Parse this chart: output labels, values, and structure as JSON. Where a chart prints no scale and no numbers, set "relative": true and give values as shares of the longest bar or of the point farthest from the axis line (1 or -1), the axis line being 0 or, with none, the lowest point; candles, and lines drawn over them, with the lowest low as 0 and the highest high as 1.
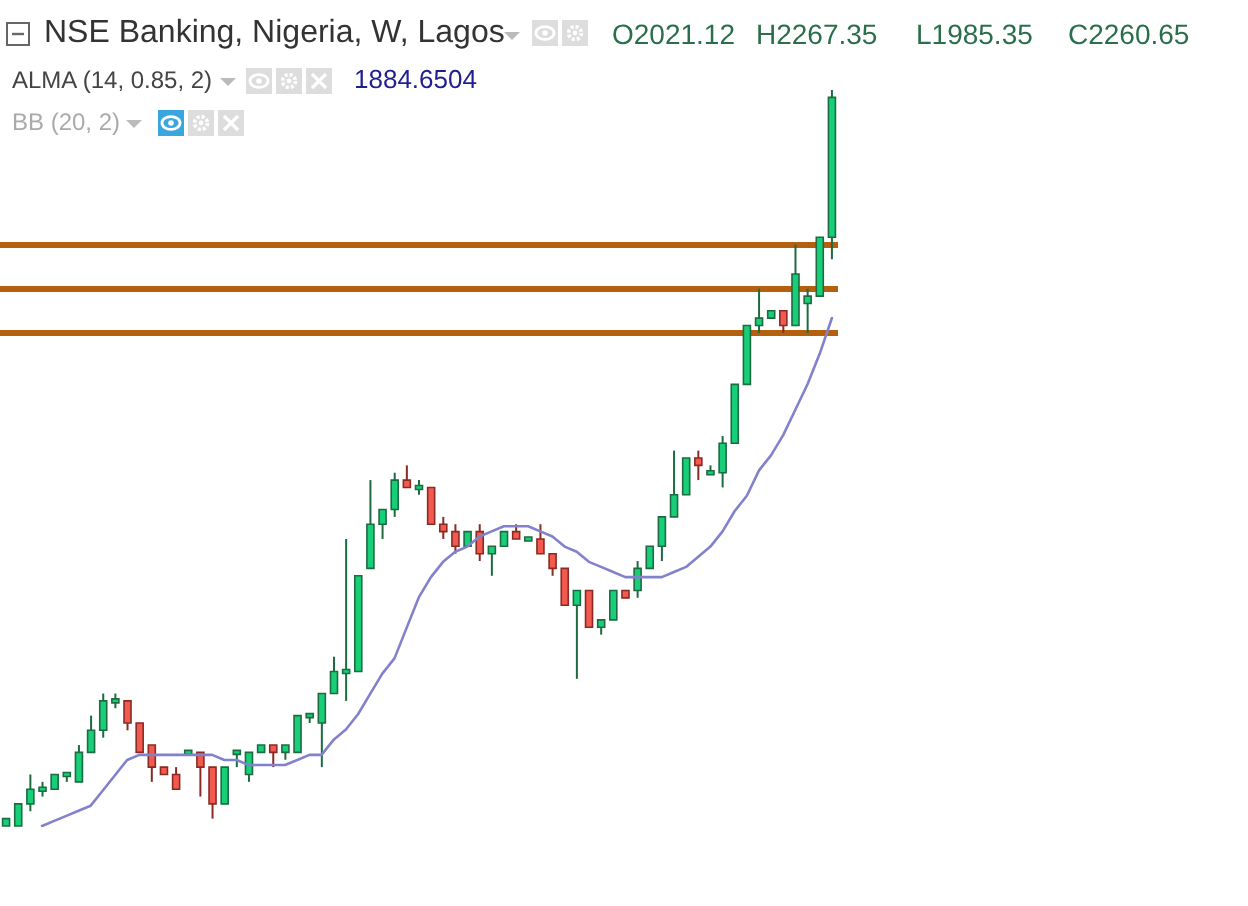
{
  "chart_data": [
    {
      "type": "candlestick",
      "relative": true,
      "annotations": [
        "NSE Banking, Nigeria, W, Lagos",
        "O2021.12",
        "H2267.35",
        "L1985.35",
        "C2260.65",
        "ALMA (14, 0.85, 2)",
        "1884.6504",
        "BB (20, 2)"
      ],
      "categories": [
        null,
        null,
        null,
        null,
        null,
        null,
        null,
        null,
        null,
        null,
        null,
        null,
        null,
        null,
        null,
        null,
        null,
        null,
        null,
        null,
        null,
        null,
        null,
        null,
        null,
        null,
        null,
        null,
        null,
        null,
        null,
        null,
        null,
        null,
        null,
        null,
        null,
        null,
        null,
        null,
        null,
        null,
        null,
        null,
        null,
        null,
        null,
        null,
        null,
        null,
        null,
        null,
        null,
        null,
        null,
        null,
        null,
        null,
        null,
        null,
        null,
        null,
        null,
        null,
        null,
        null,
        null,
        null,
        null
      ],
      "ohlc": [
        [
          0.0,
          0.01,
          0.0,
          0.01
        ],
        [
          0.0,
          0.03,
          0.0,
          0.03
        ],
        [
          0.03,
          0.07,
          0.02,
          0.05
        ],
        [
          0.05,
          0.06,
          0.04,
          0.05
        ],
        [
          0.05,
          0.07,
          0.05,
          0.07
        ],
        [
          0.07,
          0.07,
          0.06,
          0.07
        ],
        [
          0.06,
          0.11,
          0.06,
          0.1
        ],
        [
          0.1,
          0.15,
          0.1,
          0.13
        ],
        [
          0.13,
          0.18,
          0.12,
          0.17
        ],
        [
          0.17,
          0.18,
          0.16,
          0.17
        ],
        [
          0.17,
          0.17,
          0.13,
          0.14
        ],
        [
          0.14,
          0.14,
          0.1,
          0.1
        ],
        [
          0.11,
          0.11,
          0.06,
          0.08
        ],
        [
          0.08,
          0.08,
          0.07,
          0.07
        ],
        [
          0.07,
          0.08,
          0.05,
          0.05
        ],
        [
          0.1,
          0.1,
          0.1,
          0.1
        ],
        [
          0.1,
          0.1,
          0.04,
          0.08
        ],
        [
          0.08,
          0.08,
          0.01,
          0.03
        ],
        [
          0.03,
          0.08,
          0.03,
          0.08
        ],
        [
          0.1,
          0.1,
          0.08,
          0.1
        ],
        [
          0.07,
          0.1,
          0.06,
          0.1
        ],
        [
          0.1,
          0.11,
          0.1,
          0.11
        ],
        [
          0.11,
          0.11,
          0.08,
          0.1
        ],
        [
          0.1,
          0.11,
          0.09,
          0.11
        ],
        [
          0.1,
          0.15,
          0.1,
          0.15
        ],
        [
          0.15,
          0.15,
          0.14,
          0.15
        ],
        [
          0.14,
          0.18,
          0.08,
          0.18
        ],
        [
          0.18,
          0.23,
          0.18,
          0.21
        ],
        [
          0.21,
          0.39,
          0.17,
          0.21
        ],
        [
          0.21,
          0.34,
          0.21,
          0.34
        ],
        [
          0.35,
          0.47,
          0.35,
          0.41
        ],
        [
          0.41,
          0.43,
          0.39,
          0.43
        ],
        [
          0.43,
          0.48,
          0.42,
          0.47
        ],
        [
          0.47,
          0.49,
          0.46,
          0.46
        ],
        [
          0.46,
          0.47,
          0.45,
          0.46
        ],
        [
          0.46,
          0.46,
          0.41,
          0.41
        ],
        [
          0.41,
          0.42,
          0.39,
          0.4
        ],
        [
          0.4,
          0.41,
          0.37,
          0.38
        ],
        [
          0.38,
          0.4,
          0.38,
          0.4
        ],
        [
          0.4,
          0.41,
          0.36,
          0.37
        ],
        [
          0.37,
          0.38,
          0.34,
          0.38
        ],
        [
          0.38,
          0.4,
          0.38,
          0.4
        ],
        [
          0.4,
          0.41,
          0.39,
          0.39
        ],
        [
          0.39,
          0.39,
          0.39,
          0.39
        ],
        [
          0.39,
          0.41,
          0.37,
          0.37
        ],
        [
          0.37,
          0.37,
          0.34,
          0.35
        ],
        [
          0.35,
          0.35,
          0.3,
          0.3
        ],
        [
          0.3,
          0.32,
          0.2,
          0.32
        ],
        [
          0.32,
          0.32,
          0.27,
          0.27
        ],
        [
          0.27,
          0.28,
          0.26,
          0.28
        ],
        [
          0.28,
          0.32,
          0.28,
          0.32
        ],
        [
          0.32,
          0.32,
          0.31,
          0.31
        ],
        [
          0.32,
          0.36,
          0.31,
          0.35
        ],
        [
          0.35,
          0.38,
          0.35,
          0.38
        ],
        [
          0.38,
          0.42,
          0.36,
          0.42
        ],
        [
          0.42,
          0.51,
          0.42,
          0.45
        ],
        [
          0.45,
          0.5,
          0.45,
          0.5
        ],
        [
          0.5,
          0.51,
          0.47,
          0.49
        ],
        [
          0.48,
          0.49,
          0.48,
          0.48
        ],
        [
          0.48,
          0.53,
          0.46,
          0.52
        ],
        [
          0.52,
          0.6,
          0.52,
          0.6
        ],
        [
          0.6,
          0.68,
          0.6,
          0.68
        ],
        [
          0.68,
          0.73,
          0.67,
          0.69
        ],
        [
          0.69,
          0.7,
          0.69,
          0.7
        ],
        [
          0.7,
          0.7,
          0.67,
          0.68
        ],
        [
          0.68,
          0.79,
          0.68,
          0.75
        ],
        [
          0.71,
          0.73,
          0.67,
          0.72
        ],
        [
          0.72,
          0.8,
          0.72,
          0.8
        ],
        [
          0.8,
          1.0,
          0.77,
          0.99
        ]
      ],
      "ref_lines": [
        {
          "axis": "y",
          "value": 0.79,
          "color": "#b5600f"
        },
        {
          "axis": "y",
          "value": 0.73,
          "color": "#b5600f"
        },
        {
          "axis": "y",
          "value": 0.67,
          "color": "#b5600f"
        }
      ]
    },
    {
      "type": "line",
      "relative": true,
      "marker": "none",
      "line_style": "solid",
      "categories": [
        null,
        null,
        null,
        null,
        null,
        null,
        null,
        null,
        null,
        null,
        null,
        null,
        null,
        null,
        null,
        null,
        null,
        null,
        null,
        null,
        null,
        null,
        null,
        null,
        null,
        null,
        null,
        null,
        null,
        null,
        null,
        null,
        null,
        null,
        null,
        null,
        null,
        null,
        null,
        null,
        null,
        null,
        null,
        null,
        null,
        null,
        null,
        null,
        null,
        null,
        null,
        null,
        null,
        null,
        null,
        null,
        null,
        null,
        null,
        null,
        null,
        null,
        null,
        null,
        null,
        null
      ],
      "series": [
        {
          "color": "#8282cc",
          "values": [
            0.0,
            0.01,
            0.02,
            0.03,
            0.04,
            0.07,
            0.1,
            0.13,
            0.14,
            0.14,
            0.14,
            0.14,
            0.14,
            0.14,
            0.14,
            0.13,
            0.13,
            0.12,
            0.12,
            0.12,
            0.12,
            0.13,
            0.14,
            0.14,
            0.17,
            0.19,
            0.22,
            0.26,
            0.3,
            0.33,
            0.39,
            0.45,
            0.49,
            0.52,
            0.54,
            0.55,
            0.57,
            0.58,
            0.59,
            0.59,
            0.59,
            0.58,
            0.57,
            0.55,
            0.54,
            0.52,
            0.51,
            0.5,
            0.49,
            0.49,
            0.49,
            0.49,
            0.5,
            0.51,
            0.53,
            0.55,
            0.58,
            0.62,
            0.65,
            0.7,
            0.73,
            0.77,
            0.82,
            0.87,
            0.93,
            1.0
          ]
        }
      ]
    }
  ]
}
